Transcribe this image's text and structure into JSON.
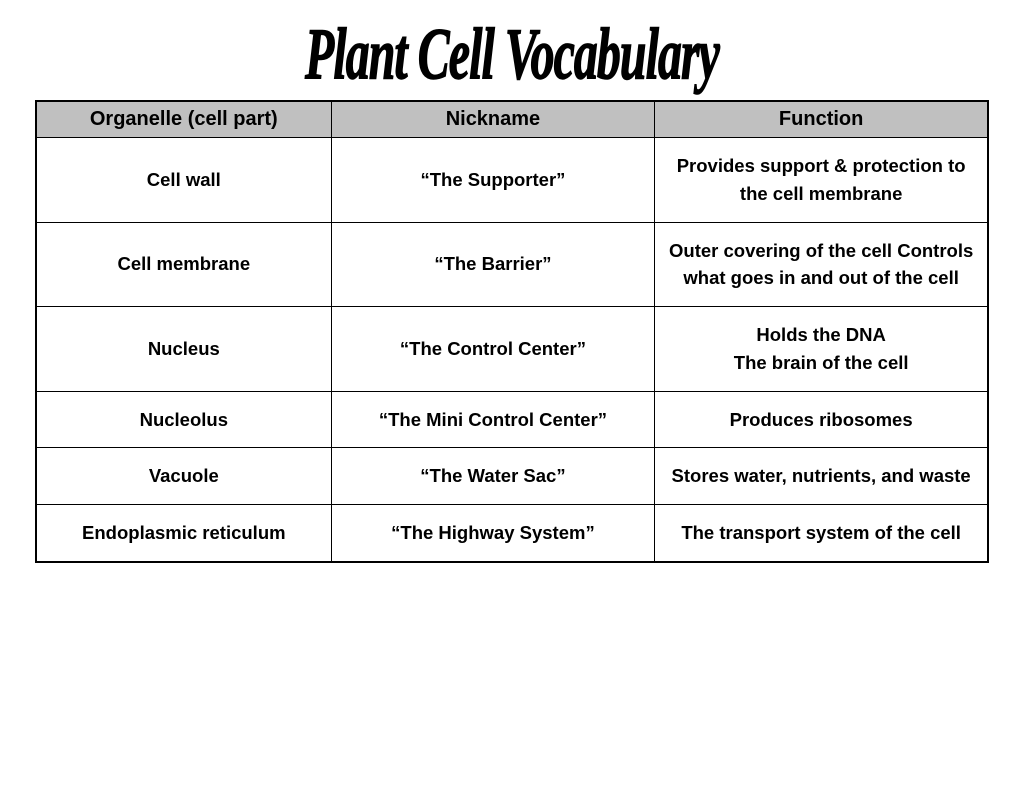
{
  "page": {
    "title": "Plant Cell Vocabulary",
    "background_color": "#ffffff",
    "title_fontsize": 52,
    "title_color": "#000000"
  },
  "table": {
    "type": "table",
    "header_bg_color": "#c0c0c0",
    "border_color": "#000000",
    "text_color": "#000000",
    "cell_fontsize": 18.5,
    "header_fontsize": 20,
    "font_weight": "bold",
    "columns": [
      {
        "key": "organelle",
        "label": "Organelle (cell part)",
        "width": "31%"
      },
      {
        "key": "nickname",
        "label": "Nickname",
        "width": "34%"
      },
      {
        "key": "function",
        "label": "Function",
        "width": "35%"
      }
    ],
    "rows": [
      {
        "organelle": "Cell wall",
        "nickname": "“The Supporter”",
        "function": "Provides support & protection to the cell membrane"
      },
      {
        "organelle": "Cell membrane",
        "nickname": "“The Barrier”",
        "function": "Outer covering of the cell Controls what goes in and out of the cell"
      },
      {
        "organelle": "Nucleus",
        "nickname": "“The Control Center”",
        "function": "Holds the DNA\nThe brain of the cell"
      },
      {
        "organelle": "Nucleolus",
        "nickname": "“The Mini Control Center”",
        "function": "Produces ribosomes"
      },
      {
        "organelle": "Vacuole",
        "nickname": "“The Water Sac”",
        "function": "Stores water, nutrients, and waste"
      },
      {
        "organelle": "Endoplasmic reticulum",
        "nickname": "“The Highway System”",
        "function": "The transport system of the cell"
      }
    ]
  }
}
